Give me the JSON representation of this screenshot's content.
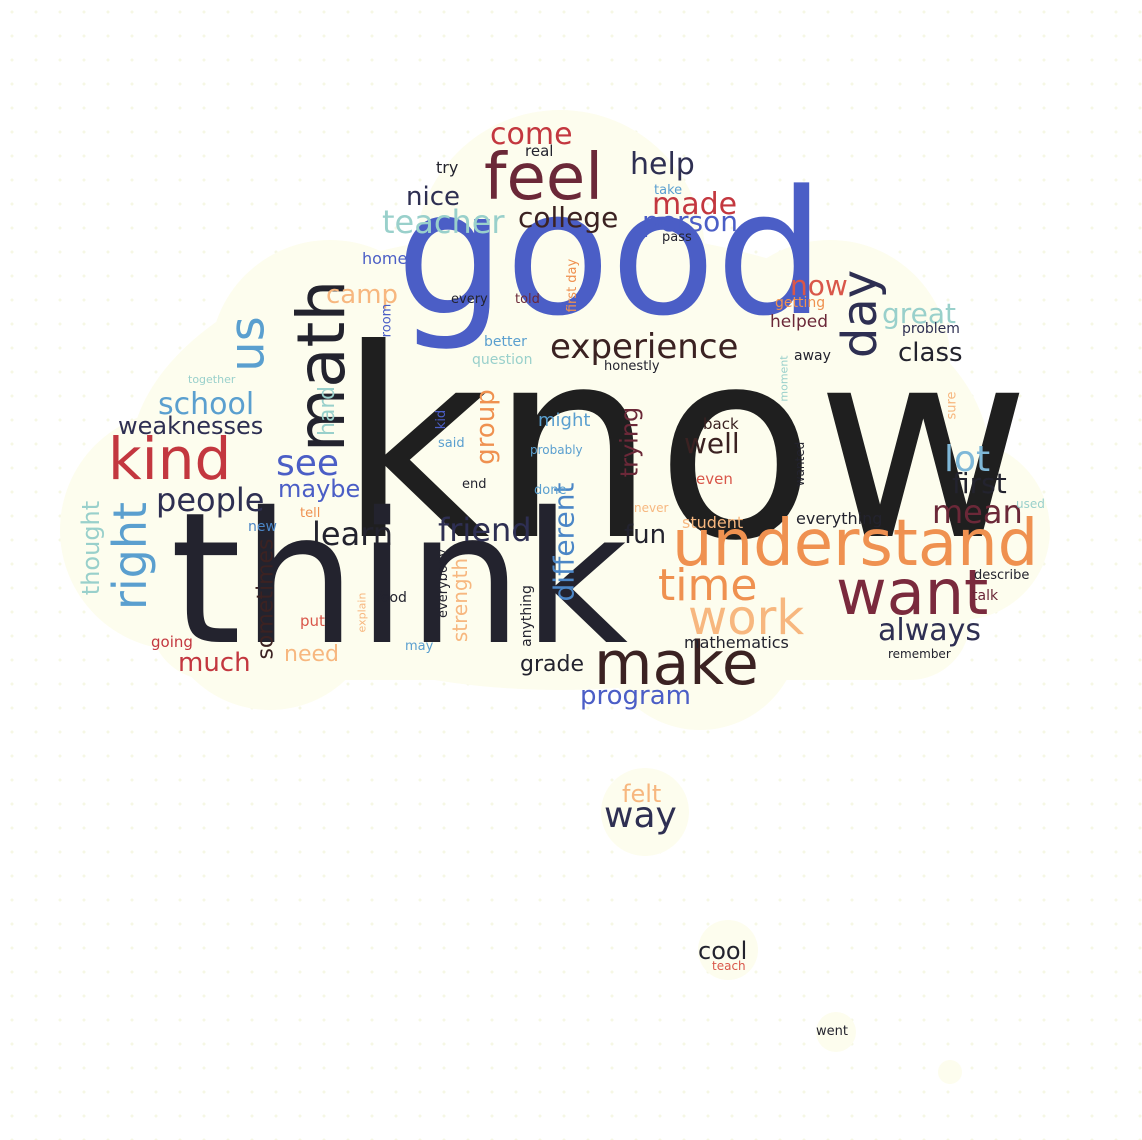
{
  "palette": {
    "dark": "#23232e",
    "charcoal": "#1f1f1f",
    "navy": "#2e2f52",
    "wine": "#6b2838",
    "red": "#c3373f",
    "blue": "#4b5ec6",
    "sky": "#5a9fcf",
    "teal": "#99d0cb",
    "orange": "#ef9150",
    "peach": "#f7b77f",
    "brown": "#3b2222",
    "cloud": "#fdfdee"
  },
  "words": [
    {
      "text": "know"
    },
    {
      "text": "think"
    },
    {
      "text": "good"
    },
    {
      "text": "understand"
    },
    {
      "text": "want"
    },
    {
      "text": "feel"
    },
    {
      "text": "make"
    },
    {
      "text": "math"
    },
    {
      "text": "kind"
    },
    {
      "text": "work"
    },
    {
      "text": "time"
    },
    {
      "text": "right"
    },
    {
      "text": "day"
    },
    {
      "text": "us"
    },
    {
      "text": "experience"
    },
    {
      "text": "people"
    },
    {
      "text": "see"
    },
    {
      "text": "school"
    },
    {
      "text": "teacher"
    },
    {
      "text": "made"
    },
    {
      "text": "come"
    },
    {
      "text": "help"
    },
    {
      "text": "college"
    },
    {
      "text": "person"
    },
    {
      "text": "nice"
    },
    {
      "text": "learn"
    },
    {
      "text": "friend"
    },
    {
      "text": "different"
    },
    {
      "text": "always"
    },
    {
      "text": "mean"
    },
    {
      "text": "first"
    },
    {
      "text": "lot"
    },
    {
      "text": "class"
    },
    {
      "text": "great"
    },
    {
      "text": "now"
    },
    {
      "text": "well"
    },
    {
      "text": "fun"
    },
    {
      "text": "camp"
    },
    {
      "text": "group"
    },
    {
      "text": "trying"
    },
    {
      "text": "maybe"
    },
    {
      "text": "weaknesses"
    },
    {
      "text": "much"
    },
    {
      "text": "program"
    },
    {
      "text": "grade"
    },
    {
      "text": "sometimes"
    },
    {
      "text": "thought"
    },
    {
      "text": "hard"
    },
    {
      "text": "strength"
    },
    {
      "text": "need"
    },
    {
      "text": "might"
    },
    {
      "text": "mathematics"
    },
    {
      "text": "everything"
    },
    {
      "text": "helped"
    },
    {
      "text": "student"
    },
    {
      "text": "try"
    },
    {
      "text": "real"
    },
    {
      "text": "take"
    },
    {
      "text": "pass"
    },
    {
      "text": "home"
    },
    {
      "text": "every"
    },
    {
      "text": "told"
    },
    {
      "text": "first day"
    },
    {
      "text": "getting"
    },
    {
      "text": "problem"
    },
    {
      "text": "room"
    },
    {
      "text": "better"
    },
    {
      "text": "question"
    },
    {
      "text": "honestly"
    },
    {
      "text": "away"
    },
    {
      "text": "moment"
    },
    {
      "text": "together"
    },
    {
      "text": "kid"
    },
    {
      "text": "said"
    },
    {
      "text": "probably"
    },
    {
      "text": "back"
    },
    {
      "text": "sure"
    },
    {
      "text": "even"
    },
    {
      "text": "wanted"
    },
    {
      "text": "end"
    },
    {
      "text": "done"
    },
    {
      "text": "never"
    },
    {
      "text": "used"
    },
    {
      "text": "tell"
    },
    {
      "text": "new"
    },
    {
      "text": "describe"
    },
    {
      "text": "talk"
    },
    {
      "text": "everybody"
    },
    {
      "text": "anything"
    },
    {
      "text": "food"
    },
    {
      "text": "explain"
    },
    {
      "text": "put"
    },
    {
      "text": "going"
    },
    {
      "text": "may"
    },
    {
      "text": "remember"
    },
    {
      "text": "felt"
    },
    {
      "text": "way"
    },
    {
      "text": "cool"
    },
    {
      "text": "teach"
    },
    {
      "text": "went"
    }
  ]
}
